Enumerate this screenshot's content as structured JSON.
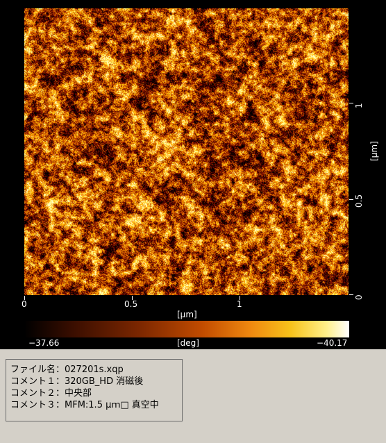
{
  "xaxis": {
    "ticks": [
      "0",
      "0.5",
      "1"
    ],
    "unit": "[μm]"
  },
  "yaxis": {
    "ticks": [
      "1",
      "0.5",
      "0"
    ],
    "unit": "[μm]"
  },
  "colorbar": {
    "min": "−37.66",
    "unit": "[deg]",
    "max": "−40.17"
  },
  "info": [
    "ファイル名：027201s.xqp",
    "コメント１：320GB_HD 消磁後",
    "コメント２：中央部",
    "コメント３：MFM:1.5 μｍ□ 真空中"
  ],
  "colors": {
    "background": "#d4d0c8",
    "viewer_bg": "#000000",
    "colormap": "afmhot"
  }
}
